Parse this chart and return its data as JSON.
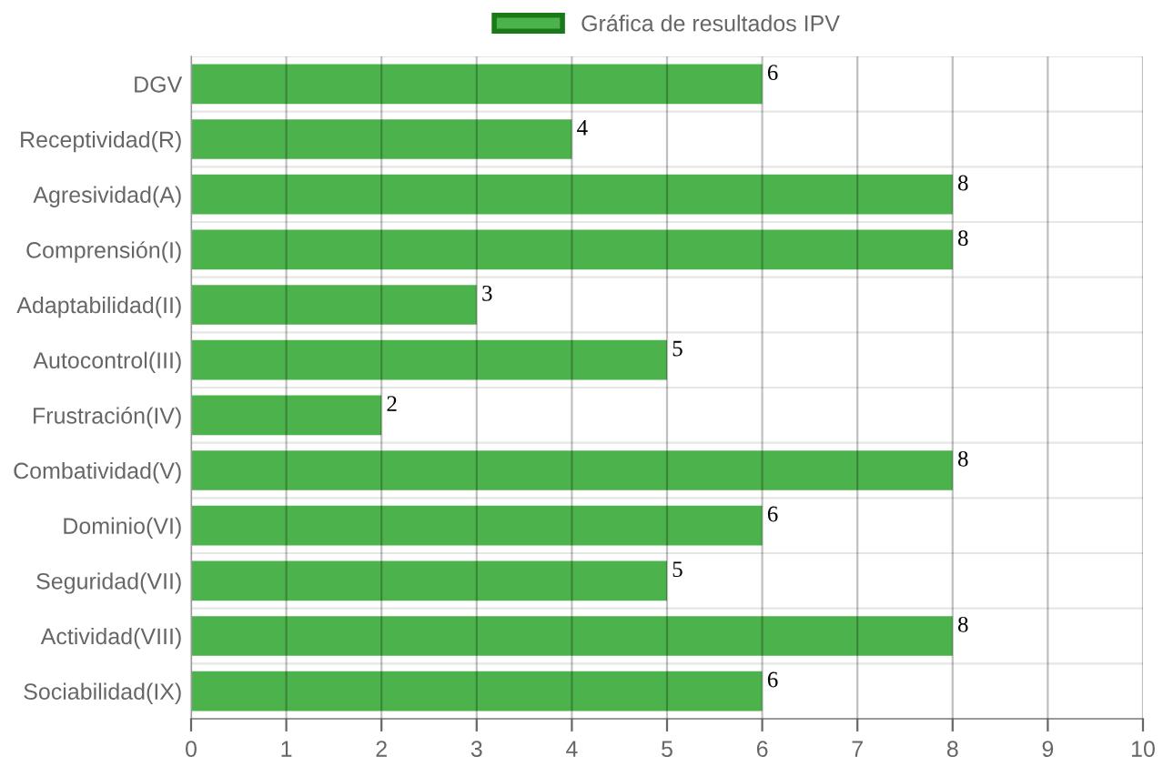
{
  "chart_data": {
    "type": "bar",
    "orientation": "horizontal",
    "categories": [
      "DGV",
      "Receptividad(R)",
      "Agresividad(A)",
      "Comprensión(I)",
      "Adaptabilidad(II)",
      "Autocontrol(III)",
      "Frustración(IV)",
      "Combatividad(V)",
      "Dominio(VI)",
      "Seguridad(VII)",
      "Actividad(VIII)",
      "Sociabilidad(IX)"
    ],
    "series": [
      {
        "name": "Gráfica de resultados IPV",
        "color": "#4cb34c",
        "values": [
          6,
          4,
          8,
          8,
          3,
          5,
          2,
          8,
          6,
          5,
          8,
          6
        ]
      }
    ],
    "xlim": [
      0,
      10
    ],
    "xticks": [
      0,
      1,
      2,
      3,
      4,
      5,
      6,
      7,
      8,
      9,
      10
    ],
    "grid": true,
    "legend": "top",
    "data_labels": true
  }
}
